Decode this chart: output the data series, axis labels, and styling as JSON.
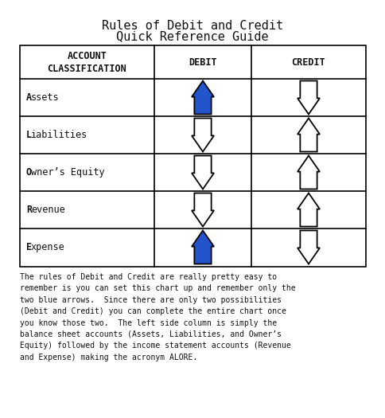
{
  "title_line1": "Rules of Debit and Credit",
  "title_line2": "Quick Reference Guide",
  "col_headers": [
    "ACCOUNT\nCLASSIFICATION",
    "DEBIT",
    "CREDIT"
  ],
  "rows": [
    "Assets",
    "Liabilities",
    "Owner’s Equity",
    "Revenue",
    "Expense"
  ],
  "debit_arrows": [
    "up_blue",
    "down_white",
    "down_white",
    "down_white",
    "up_blue"
  ],
  "credit_arrows": [
    "down_white",
    "up_white",
    "up_white",
    "up_white",
    "down_white"
  ],
  "footer_text": "The rules of Debit and Credit are really pretty easy to\nremember is you can set this chart up and remember only the\ntwo blue arrows.  Since there are only two possibilities\n(Debit and Credit) you can complete the entire chart once\nyou know those two.  The left side column is simply the\nbalance sheet accounts (Assets, Liabilities, and Owner’s\nEquity) followed by the income statement accounts (Revenue\nand Expense) making the acronym ALORE.",
  "blue_color": "#2255cc",
  "white_arrow_edge": "#000000",
  "bg_color": "#ffffff",
  "table_border": "#000000",
  "title_fontsize": 11,
  "header_fontsize": 8.5,
  "row_label_fontsize": 8.5,
  "footer_fontsize": 7.0
}
